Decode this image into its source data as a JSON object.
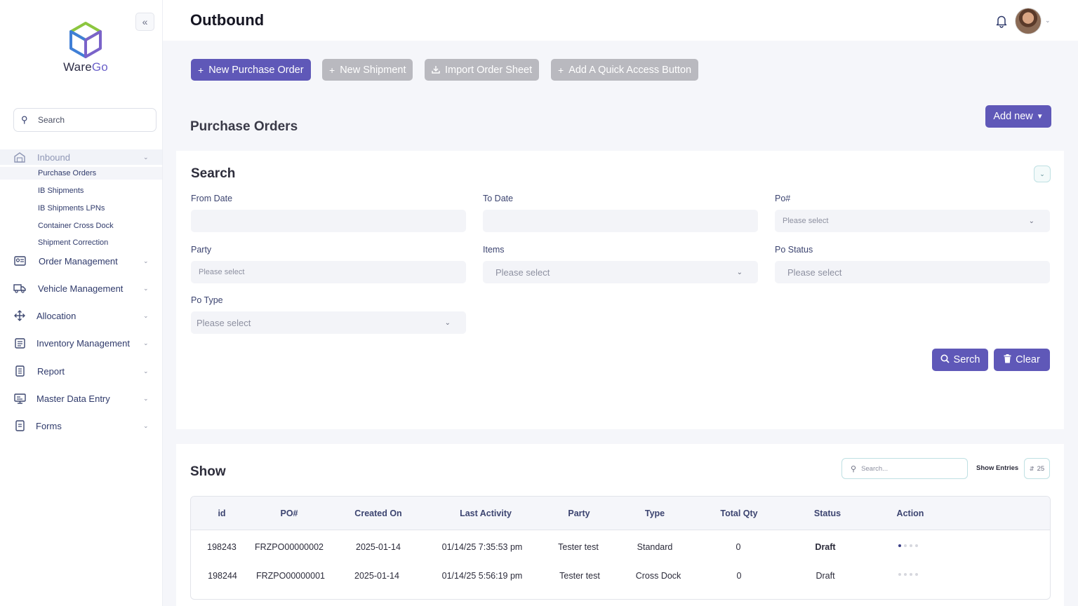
{
  "brand": {
    "name_part1": "Ware",
    "name_part2": "Go"
  },
  "sidebar": {
    "search_placeholder": "Search",
    "inbound": {
      "label": "Inbound",
      "sub_items": [
        "Purchase Orders",
        "IB Shipments",
        "IB Shipments LPNs",
        "Container Cross Dock",
        "Shipment Correction"
      ]
    },
    "items": [
      "Order Management",
      "Vehicle Management",
      "Allocation",
      "Inventory Management",
      "Report",
      "Master Data Entry",
      "Forms"
    ]
  },
  "header": {
    "title": "Outbound"
  },
  "quick_buttons": [
    "New Purchase Order",
    "New Shipment",
    "Import Order Sheet",
    "Add A Quick Access Button"
  ],
  "section": {
    "title": "Purchase Orders",
    "add_new": "Add new"
  },
  "search_form": {
    "title": "Search",
    "fields": {
      "from_date": {
        "label": "From Date",
        "placeholder": ""
      },
      "to_date": {
        "label": "To Date",
        "placeholder": ""
      },
      "po_number": {
        "label": "Po#",
        "placeholder": "Please select"
      },
      "party": {
        "label": "Party",
        "placeholder": "Please select"
      },
      "items": {
        "label": "Items",
        "placeholder": "Please select"
      },
      "po_status": {
        "label": "Po Status",
        "placeholder": "Please select"
      },
      "po_type": {
        "label": "Po Type",
        "placeholder": "Please select"
      }
    },
    "search_button": "Serch",
    "clear_button": "Clear"
  },
  "table": {
    "title": "Show",
    "search_placeholder": "Search...",
    "show_entries_label": "Show Entries",
    "entries": "25",
    "columns": [
      "id",
      "PO#",
      "Created On",
      "Last Activity",
      "Party",
      "Type",
      "Total Qty",
      "Status",
      "Action"
    ],
    "rows": [
      {
        "id": "198243",
        "po": "FRZPO00000002",
        "created": "2025-01-14",
        "last_activity": "01/14/25 7:35:53 pm",
        "party": "Tester test",
        "type": "Standard",
        "qty": "0",
        "status": "Draft"
      },
      {
        "id": "198244",
        "po": "FRZPO00000001",
        "created": "2025-01-14",
        "last_activity": "01/14/25 5:56:19 pm",
        "party": "Tester test",
        "type": "Cross Dock",
        "qty": "0",
        "status": "Draft"
      }
    ]
  },
  "colors": {
    "primary": "#5f58b8",
    "disabled": "#b9b9bf",
    "accent_green": "#8cc63f",
    "accent_blue": "#3f7fd6"
  }
}
